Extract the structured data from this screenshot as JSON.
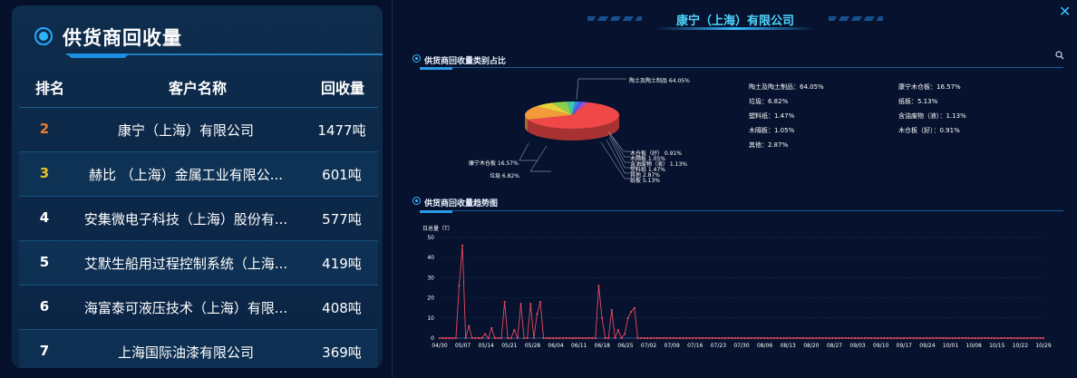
{
  "left": {
    "title": "供货商回收量",
    "headers": {
      "rank": "排名",
      "name": "客户名称",
      "qty": "回收量"
    },
    "rows": [
      {
        "rank": "2",
        "name": "康宁（上海）有限公司",
        "qty": "1477吨",
        "rank_color": "#f07a2a"
      },
      {
        "rank": "3",
        "name": "赫比 （上海）金属工业有限公...",
        "qty": "601吨",
        "rank_color": "#e5c22a"
      },
      {
        "rank": "4",
        "name": "安集微电子科技（上海）股份有...",
        "qty": "577吨",
        "rank_color": "#ffffff"
      },
      {
        "rank": "5",
        "name": "艾默生船用过程控制系统（上海...",
        "qty": "419吨",
        "rank_color": "#ffffff"
      },
      {
        "rank": "6",
        "name": "海富泰可液压技术（上海）有限...",
        "qty": "408吨",
        "rank_color": "#ffffff"
      },
      {
        "rank": "7",
        "name": "上海国际油漆有限公司",
        "qty": "369吨",
        "rank_color": "#ffffff"
      }
    ]
  },
  "right": {
    "title": "康宁（上海）有限公司",
    "close_icon": "close-icon",
    "pie_section_title": "供货商回收量类别占比",
    "trend_section_title": "供货商回收量趋势图",
    "search_icon": "search-icon",
    "pie_labels": {
      "main": "陶土及陶土制品 64.05%",
      "kangning": "康宁木仓板 16.57%",
      "laji": "垃圾 6.82%",
      "s1": "木仓板（好） 0.91%",
      "s2": "木隔板 1.05%",
      "s3": "含油废物（液） 1.13%",
      "s4": "塑料纸 1.47%",
      "s5": "其他 2.87%",
      "s6": "纸板 5.13%"
    },
    "legend": [
      {
        "text": "陶土及陶土制品：64.05%"
      },
      {
        "text": "康宁木仓板：16.57%"
      },
      {
        "text": "垃圾：6.82%"
      },
      {
        "text": "纸板：5.13%"
      },
      {
        "text": "塑料纸：1.47%"
      },
      {
        "text": "含油废物（液）：1.13%"
      },
      {
        "text": "木隔板：1.05%"
      },
      {
        "text": "木仓板（好）：0.91%"
      },
      {
        "text": "其他：2.87%"
      }
    ]
  },
  "chart_data": [
    {
      "type": "pie",
      "slices": [
        {
          "label": "陶土及陶土制品",
          "value": 64.05,
          "color": "#f04848"
        },
        {
          "label": "康宁木仓板",
          "value": 16.57,
          "color": "#f39a3a"
        },
        {
          "label": "垃圾",
          "value": 6.82,
          "color": "#e6d23c"
        },
        {
          "label": "纸板",
          "value": 5.13,
          "color": "#8ed24b"
        },
        {
          "label": "其他",
          "value": 2.87,
          "color": "#3fc7a8"
        },
        {
          "label": "塑料纸",
          "value": 1.47,
          "color": "#3a86e8"
        },
        {
          "label": "含油废物（液）",
          "value": 1.13,
          "color": "#4a5de0"
        },
        {
          "label": "木隔板",
          "value": 1.05,
          "color": "#8f5ae0"
        },
        {
          "label": "木仓板（好）",
          "value": 0.91,
          "color": "#b54ad6"
        }
      ]
    },
    {
      "type": "line",
      "ylabel": "日总量（T）",
      "ylim": [
        0,
        50
      ],
      "yticks": [
        0,
        10,
        20,
        30,
        40,
        50
      ],
      "x_tick_labels": [
        "04/30",
        "05/07",
        "05/14",
        "05/21",
        "05/28",
        "06/04",
        "06/11",
        "06/18",
        "06/25",
        "07/02",
        "07/09",
        "07/16",
        "07/23",
        "07/30",
        "08/06",
        "08/13",
        "08/20",
        "08/27",
        "09/03",
        "09/10",
        "09/17",
        "09/24",
        "10/01",
        "10/08",
        "10/15",
        "10/22",
        "10/29"
      ],
      "series": [
        {
          "color": "#e84a5f",
          "values": [
            0,
            0,
            0,
            0,
            0,
            0,
            26,
            46,
            0,
            6,
            0,
            0,
            0,
            0,
            2,
            0,
            5,
            0,
            0,
            0,
            18,
            0,
            0,
            4,
            0,
            17,
            0,
            0,
            17,
            0,
            12,
            18,
            0,
            0,
            0,
            0,
            0,
            0,
            0,
            0,
            0,
            0,
            0,
            0,
            0,
            0,
            0,
            0,
            0,
            26,
            10,
            0,
            0,
            14,
            0,
            4,
            0,
            2,
            10,
            13,
            15,
            0,
            0,
            0,
            0,
            0,
            0,
            0,
            0,
            0,
            0,
            0,
            0,
            0,
            0,
            0,
            0,
            0,
            0,
            0,
            0,
            0,
            0,
            0,
            0,
            0,
            0,
            0,
            0,
            0,
            0,
            0,
            0,
            0,
            0,
            0,
            0,
            0,
            0,
            0,
            0,
            0,
            0,
            0,
            0,
            0,
            0,
            0,
            0,
            0,
            0,
            0,
            0,
            0,
            0,
            0,
            0,
            0,
            0,
            0,
            0,
            0,
            0,
            0,
            0,
            0,
            0,
            0,
            0,
            0,
            0,
            0,
            0,
            0,
            0,
            0,
            0,
            0,
            0,
            0,
            0,
            0,
            0,
            0,
            0,
            0,
            0,
            0,
            0,
            0,
            0,
            0,
            0,
            0,
            0,
            0,
            0,
            0,
            0,
            0,
            0,
            0,
            0,
            0,
            0,
            0,
            0,
            0,
            0,
            0,
            0,
            0,
            0,
            0,
            0,
            0,
            0,
            0,
            0,
            0,
            0,
            0,
            0,
            0,
            0,
            0,
            0
          ]
        }
      ]
    }
  ]
}
